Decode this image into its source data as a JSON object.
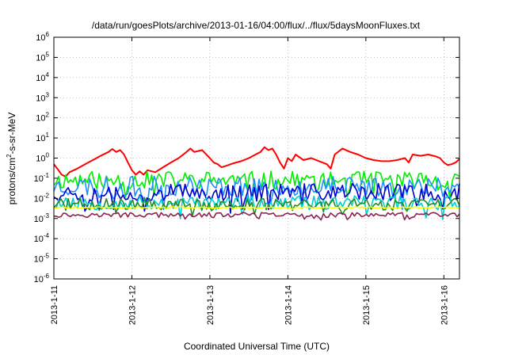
{
  "chart_data": {
    "type": "line",
    "title": "/data/run/goesPlots/archive/2013-01-16/04:00/flux/../flux/5daysMoonFluxes.txt",
    "xlabel": "Coordinated Universal Time (UTC)",
    "ylabel": {
      "prefix": "protons/cm",
      "sup": "2",
      "suffix": "-s-sr-MeV"
    },
    "yscale": "log",
    "ylim": [
      1e-06,
      1000000.0
    ],
    "xlim_days": [
      0,
      5.2
    ],
    "grid": true,
    "legend": "none",
    "x_ticks": [
      {
        "x": 0,
        "label": "2013-1-11"
      },
      {
        "x": 1,
        "label": "2013-1-12"
      },
      {
        "x": 2,
        "label": "2013-1-13"
      },
      {
        "x": 3,
        "label": "2013-1-14"
      },
      {
        "x": 4,
        "label": "2013-1-15"
      },
      {
        "x": 5,
        "label": "2013-1-16"
      }
    ],
    "y_ticks": [
      {
        "v": -6,
        "base": "10",
        "exp": "-6"
      },
      {
        "v": -5,
        "base": "10",
        "exp": "-5"
      },
      {
        "v": -4,
        "base": "10",
        "exp": "-4"
      },
      {
        "v": -3,
        "base": "10",
        "exp": "-3"
      },
      {
        "v": -2,
        "base": "10",
        "exp": "-2"
      },
      {
        "v": -1,
        "base": "10",
        "exp": "-1"
      },
      {
        "v": 0,
        "base": "10",
        "exp": "0"
      },
      {
        "v": 1,
        "base": "10",
        "exp": "1"
      },
      {
        "v": 2,
        "base": "10",
        "exp": "2"
      },
      {
        "v": 3,
        "base": "10",
        "exp": "3"
      },
      {
        "v": 4,
        "base": "10",
        "exp": "4"
      },
      {
        "v": 5,
        "base": "10",
        "exp": "5"
      },
      {
        "v": 6,
        "base": "10",
        "exp": "6"
      }
    ],
    "series": [
      {
        "color": "#ff0000",
        "points": [
          [
            0,
            0.5
          ],
          [
            0.05,
            0.28
          ],
          [
            0.1,
            0.15
          ],
          [
            0.15,
            0.12
          ],
          [
            0.2,
            0.2
          ],
          [
            0.3,
            0.3
          ],
          [
            0.4,
            0.5
          ],
          [
            0.5,
            0.8
          ],
          [
            0.6,
            1.3
          ],
          [
            0.7,
            2.0
          ],
          [
            0.75,
            2.8
          ],
          [
            0.8,
            2.0
          ],
          [
            0.85,
            2.5
          ],
          [
            0.9,
            1.5
          ],
          [
            0.95,
            0.6
          ],
          [
            1.0,
            0.25
          ],
          [
            1.05,
            0.15
          ],
          [
            1.1,
            0.22
          ],
          [
            1.15,
            0.15
          ],
          [
            1.2,
            0.25
          ],
          [
            1.3,
            0.2
          ],
          [
            1.4,
            0.35
          ],
          [
            1.5,
            0.6
          ],
          [
            1.6,
            1.0
          ],
          [
            1.7,
            2.0
          ],
          [
            1.75,
            3.0
          ],
          [
            1.8,
            2.0
          ],
          [
            1.9,
            2.5
          ],
          [
            2.0,
            1.0
          ],
          [
            2.05,
            0.6
          ],
          [
            2.1,
            0.5
          ],
          [
            2.15,
            0.35
          ],
          [
            2.2,
            0.4
          ],
          [
            2.3,
            0.55
          ],
          [
            2.4,
            0.7
          ],
          [
            2.5,
            1.0
          ],
          [
            2.6,
            1.6
          ],
          [
            2.65,
            2.0
          ],
          [
            2.7,
            3.5
          ],
          [
            2.75,
            2.5
          ],
          [
            2.8,
            3.0
          ],
          [
            2.85,
            1.5
          ],
          [
            2.9,
            0.6
          ],
          [
            2.95,
            0.3
          ],
          [
            3.0,
            1.0
          ],
          [
            3.05,
            0.7
          ],
          [
            3.1,
            1.5
          ],
          [
            3.2,
            0.8
          ],
          [
            3.3,
            1.0
          ],
          [
            3.4,
            0.7
          ],
          [
            3.5,
            0.5
          ],
          [
            3.55,
            0.3
          ],
          [
            3.6,
            1.5
          ],
          [
            3.7,
            3.0
          ],
          [
            3.8,
            2.0
          ],
          [
            3.9,
            1.5
          ],
          [
            4.0,
            1.0
          ],
          [
            4.1,
            0.8
          ],
          [
            4.2,
            0.7
          ],
          [
            4.3,
            0.7
          ],
          [
            4.4,
            0.8
          ],
          [
            4.5,
            1.0
          ],
          [
            4.55,
            0.6
          ],
          [
            4.6,
            1.5
          ],
          [
            4.7,
            1.3
          ],
          [
            4.8,
            1.5
          ],
          [
            4.9,
            1.2
          ],
          [
            4.95,
            1.0
          ],
          [
            5.0,
            0.6
          ],
          [
            5.05,
            0.45
          ],
          [
            5.1,
            0.5
          ],
          [
            5.15,
            0.6
          ],
          [
            5.2,
            0.9
          ]
        ]
      },
      {
        "color": "#00ee00",
        "base": 0.08,
        "amp": 0.45,
        "seed": 11
      },
      {
        "color": "#1e90ff",
        "base": 0.04,
        "amp": 0.5,
        "seed": 23
      },
      {
        "color": "#0000cd",
        "base": 0.02,
        "amp": 0.45,
        "seed": 37
      },
      {
        "color": "#00ced1",
        "base": 0.006,
        "amp": 0.35,
        "seed": 53
      },
      {
        "color": "#228b22",
        "base": 0.005,
        "amp": 0.3,
        "seed": 71
      },
      {
        "color": "#ffff00",
        "base": 0.0035,
        "amp": 0.04,
        "seed": 89
      },
      {
        "color": "#8b2252",
        "base": 0.0015,
        "amp": 0.12,
        "seed": 97
      }
    ]
  }
}
